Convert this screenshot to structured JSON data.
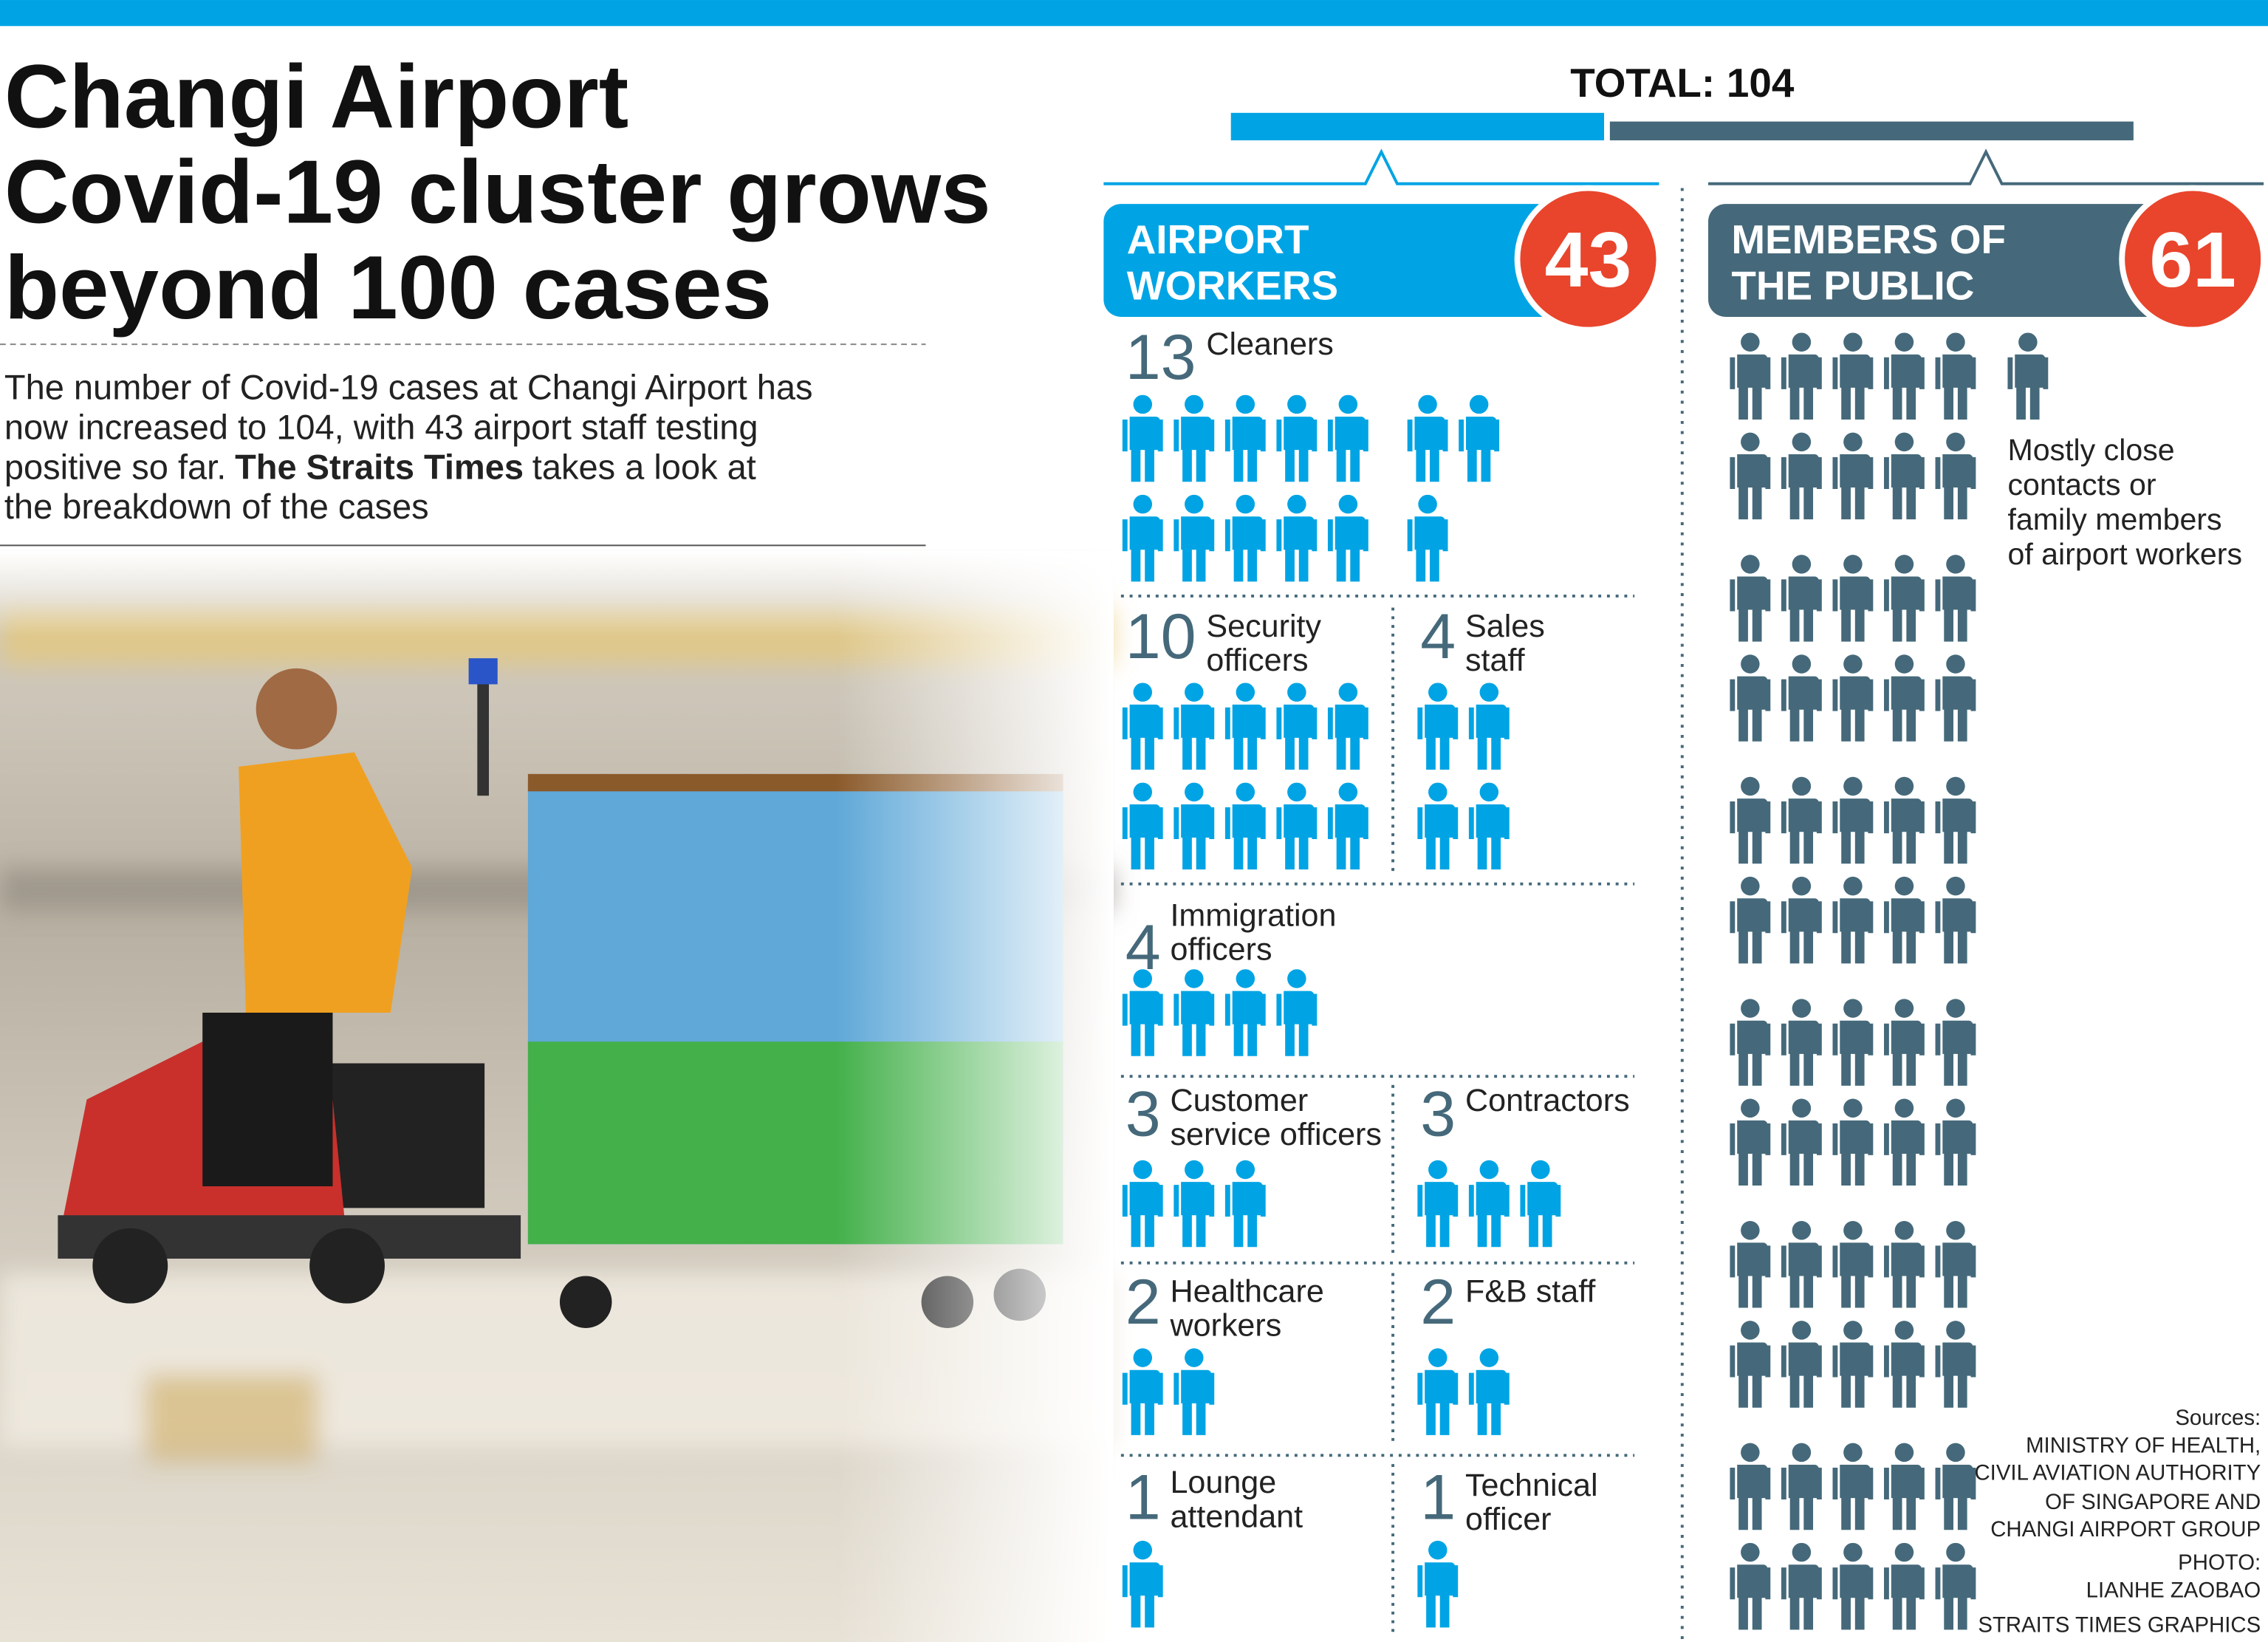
{
  "header": {
    "title_lines": [
      "Changi Airport",
      "Covid-19 cluster grows",
      "beyond 100 cases"
    ],
    "intro": [
      [
        "The number of Covid-19 cases at Changi Airport has"
      ],
      [
        "now increased to 104, with 43 airport staff testing"
      ],
      [
        "positive so far.",
        {
          "bold": "The Straits Times"
        },
        "takes a look at"
      ],
      [
        "the breakdown of the cases"
      ]
    ]
  },
  "total_label": "TOTAL:",
  "total": 104,
  "airport_workers": {
    "label_lines": [
      "AIRPORT",
      "WORKERS"
    ],
    "count": 43,
    "color": "#00a4e4",
    "categories": [
      {
        "count": 13,
        "label_lines": [
          "Cleaners"
        ]
      },
      {
        "count": 10,
        "label_lines": [
          "Security",
          "officers"
        ]
      },
      {
        "count": 4,
        "label_lines": [
          "Sales",
          "staff"
        ]
      },
      {
        "count": 4,
        "label_lines": [
          "Immigration",
          "officers"
        ]
      },
      {
        "count": 3,
        "label_lines": [
          "Customer",
          "service officers"
        ]
      },
      {
        "count": 3,
        "label_lines": [
          "Contractors"
        ]
      },
      {
        "count": 2,
        "label_lines": [
          "Healthcare",
          "workers"
        ]
      },
      {
        "count": 2,
        "label_lines": [
          "F&B staff"
        ]
      },
      {
        "count": 1,
        "label_lines": [
          "Lounge",
          "attendant"
        ]
      },
      {
        "count": 1,
        "label_lines": [
          "Technical",
          "officer"
        ]
      }
    ]
  },
  "public": {
    "label_lines": [
      "MEMBERS OF",
      "THE PUBLIC"
    ],
    "count": 61,
    "color": "#45697a",
    "note_lines": [
      "Mostly close",
      "contacts or",
      "family members",
      "of airport workers"
    ]
  },
  "sources": [
    "Sources:",
    "MINISTRY OF HEALTH,",
    "CIVIL AVIATION AUTHORITY",
    "OF SINGAPORE AND",
    "CHANGI AIRPORT GROUP",
    "PHOTO:",
    "LIANHE ZAOBAO",
    "STRAITS TIMES GRAPHICS"
  ]
}
